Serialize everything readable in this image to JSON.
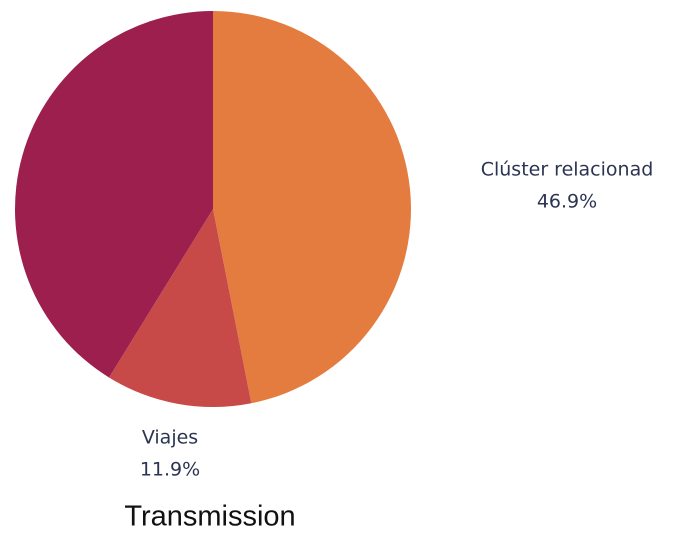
{
  "chart_data": {
    "type": "pie",
    "title": "Transmission",
    "categories": [
      "Clúster relacionad",
      "Viajes",
      null
    ],
    "values": [
      46.9,
      11.9,
      41.2
    ],
    "value_labels": [
      "46.9%",
      "11.9%",
      null
    ],
    "colors": [
      "#e57c3f",
      "#c84a48",
      "#9c1f4e"
    ]
  }
}
